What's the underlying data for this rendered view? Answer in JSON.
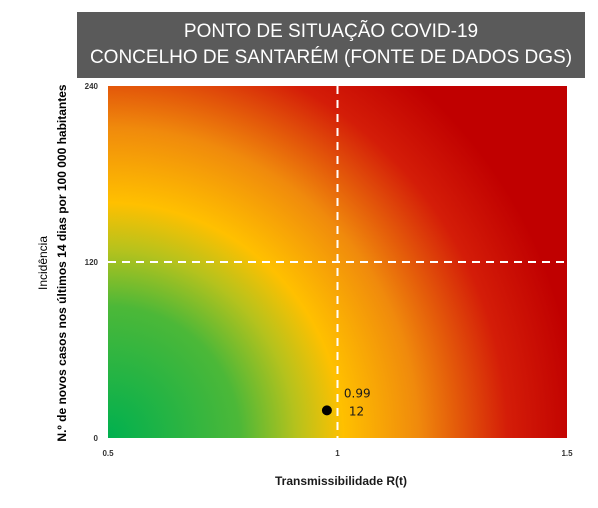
{
  "header": {
    "title_line1": "PONTO DE SITUAÇÃO COVID-19",
    "title_line2": "CONCELHO DE SANTARÉM (FONTE DE DADOS DGS)"
  },
  "chart_data": {
    "type": "scatter",
    "xlabel": "Transmissibilidade R(t)",
    "ylabel_line1": "Incidência",
    "ylabel_line2": "N.º de novos casos nos últimos 14 dias por 100 000 habitantes",
    "xlim": [
      0.5,
      1.5
    ],
    "ylim": [
      0,
      240
    ],
    "x_ticks": [
      "0.5",
      "1",
      "1.5"
    ],
    "y_ticks": [
      "0",
      "120",
      "240"
    ],
    "threshold_x": 1,
    "threshold_y": 120,
    "background": "risk gradient: green (low) to yellow to red (high)",
    "colors": {
      "low": "#00b04f",
      "mid": "#ffc000",
      "high": "#c00000"
    },
    "points": [
      {
        "x": 0.99,
        "y": 12,
        "label_x": "0.99",
        "label_y": "12"
      }
    ]
  }
}
